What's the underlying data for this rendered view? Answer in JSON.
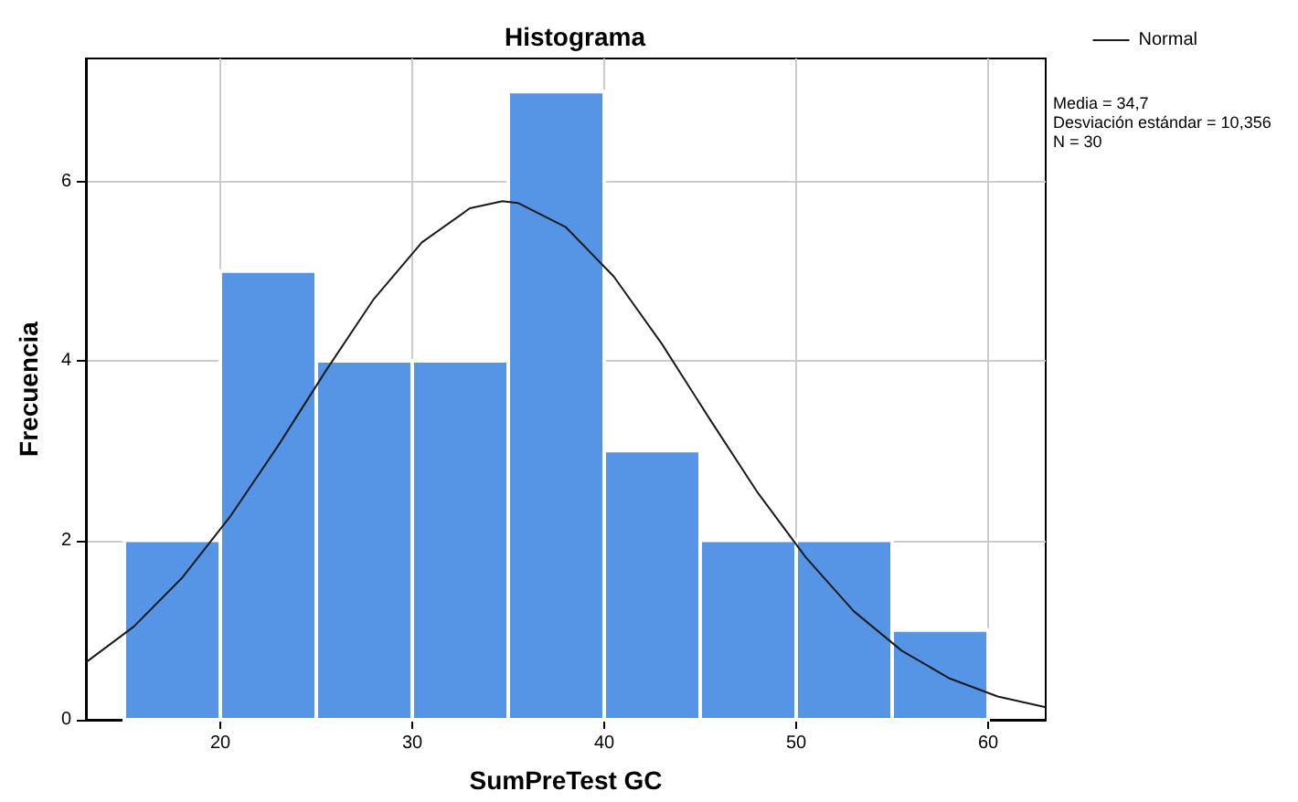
{
  "chart_data": {
    "type": "histogram",
    "title": "Histograma",
    "xlabel": "SumPreTest GC",
    "ylabel": "Frecuencia",
    "bins": [
      15,
      20,
      25,
      30,
      35,
      40,
      45,
      50,
      55,
      60
    ],
    "series": [
      {
        "color": "#5694e6",
        "values": [
          2,
          5,
          4,
          4,
          7,
          3,
          2,
          2,
          1
        ]
      },
      {
        "type": "line",
        "name": "Normal",
        "color": "#1a1a1a",
        "x": [
          13,
          15.5,
          18,
          20.5,
          23,
          25.5,
          28,
          30.5,
          33,
          34.7,
          35.5,
          38,
          40.5,
          43,
          45.5,
          48,
          50.5,
          53,
          55.5,
          58,
          60.5,
          63
        ],
        "values": [
          0.64,
          1.04,
          1.58,
          2.26,
          3.05,
          3.89,
          4.69,
          5.32,
          5.7,
          5.78,
          5.76,
          5.49,
          4.94,
          4.19,
          3.35,
          2.53,
          1.81,
          1.21,
          0.77,
          0.46,
          0.26,
          0.14
        ]
      }
    ],
    "xlim": [
      13,
      63
    ],
    "xticks": [
      20,
      30,
      40,
      50,
      60
    ],
    "ylim": [
      0,
      7.37
    ],
    "yticks": [
      0,
      2,
      4,
      6
    ],
    "grid": true,
    "legend": "top right",
    "marker": "none",
    "line_style": "solid",
    "annotations": [
      "Media = 34,7",
      "Desviación estándar = 10,356",
      "N = 30"
    ]
  }
}
